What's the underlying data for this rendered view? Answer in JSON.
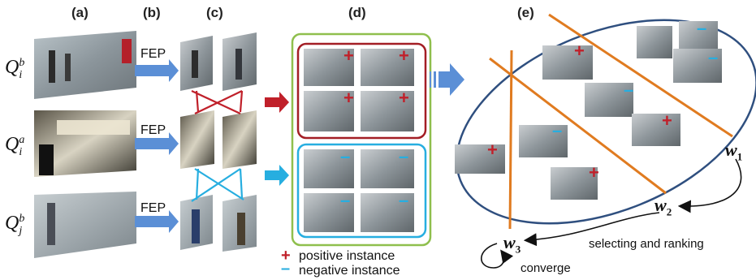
{
  "panels": {
    "a": "(a)",
    "b": "(b)",
    "c": "(c)",
    "d": "(d)",
    "e": "(e)"
  },
  "queries": [
    {
      "base": "Q",
      "sub": "i",
      "sup": "b"
    },
    {
      "base": "Q",
      "sub": "i",
      "sup": "a"
    },
    {
      "base": "Q",
      "sub": "j",
      "sup": "b"
    }
  ],
  "fep_label": "FEP",
  "legend": {
    "positive_symbol": "+",
    "positive_label": "positive instance",
    "negative_symbol": "–",
    "negative_label": "negative instance"
  },
  "weights": [
    {
      "base": "w",
      "sub": "1"
    },
    {
      "base": "w",
      "sub": "2"
    },
    {
      "base": "w",
      "sub": "3"
    }
  ],
  "annotations": {
    "selecting": "selecting and ranking",
    "converge": "converge"
  },
  "colors": {
    "positive": "#c0202a",
    "negative": "#27aee0",
    "ellipse": "#2f4f7f",
    "hyperplane": "#e07b20",
    "fep_arrow": "#5b8fd6",
    "box_outer": "#8fbf4d"
  },
  "icons": [
    "plus-icon",
    "minus-icon",
    "arrow-right-icon"
  ]
}
